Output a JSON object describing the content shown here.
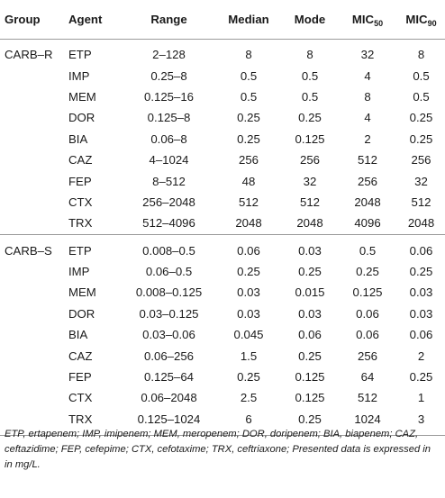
{
  "table": {
    "headers": {
      "group": "Group",
      "agent": "Agent",
      "range": "Range",
      "median": "Median",
      "mode": "Mode",
      "mic50_base": "MIC",
      "mic50_sub": "50",
      "mic90_base": "MIC",
      "mic90_sub": "90"
    },
    "groups": [
      {
        "name": "CARB–R",
        "rows": [
          [
            "ETP",
            "2–128",
            "8",
            "8",
            "32",
            "8"
          ],
          [
            "IMP",
            "0.25–8",
            "0.5",
            "0.5",
            "4",
            "0.5"
          ],
          [
            "MEM",
            "0.125–16",
            "0.5",
            "0.5",
            "8",
            "0.5"
          ],
          [
            "DOR",
            "0.125–8",
            "0.25",
            "0.25",
            "4",
            "0.25"
          ],
          [
            "BIA",
            "0.06–8",
            "0.25",
            "0.125",
            "2",
            "0.25"
          ],
          [
            "CAZ",
            "4–1024",
            "256",
            "256",
            "512",
            "256"
          ],
          [
            "FEP",
            "8–512",
            "48",
            "32",
            "256",
            "32"
          ],
          [
            "CTX",
            "256–2048",
            "512",
            "512",
            "2048",
            "512"
          ],
          [
            "TRX",
            "512–4096",
            "2048",
            "2048",
            "4096",
            "2048"
          ]
        ]
      },
      {
        "name": "CARB–S",
        "rows": [
          [
            "ETP",
            "0.008–0.5",
            "0.06",
            "0.03",
            "0.5",
            "0.06"
          ],
          [
            "IMP",
            "0.06–0.5",
            "0.25",
            "0.25",
            "0.25",
            "0.25"
          ],
          [
            "MEM",
            "0.008–0.125",
            "0.03",
            "0.015",
            "0.125",
            "0.03"
          ],
          [
            "DOR",
            "0.03–0.125",
            "0.03",
            "0.03",
            "0.06",
            "0.03"
          ],
          [
            "BIA",
            "0.03–0.06",
            "0.045",
            "0.06",
            "0.06",
            "0.06"
          ],
          [
            "CAZ",
            "0.06–256",
            "1.5",
            "0.25",
            "256",
            "2"
          ],
          [
            "FEP",
            "0.125–64",
            "0.25",
            "0.125",
            "64",
            "0.25"
          ],
          [
            "CTX",
            "0.06–2048",
            "2.5",
            "0.125",
            "512",
            "1"
          ],
          [
            "TRX",
            "0.125–1024",
            "6",
            "0.25",
            "1024",
            "3"
          ]
        ]
      }
    ]
  },
  "footnote": "ETP, ertapenem; IMP, imipenem; MEM, meropenem; DOR, doripenem; BIA, biapenem; CAZ, ceftazidime; FEP, cefepime; CTX, cefotaxime; TRX, ceftriaxone; Presented data is expressed in in mg/L."
}
